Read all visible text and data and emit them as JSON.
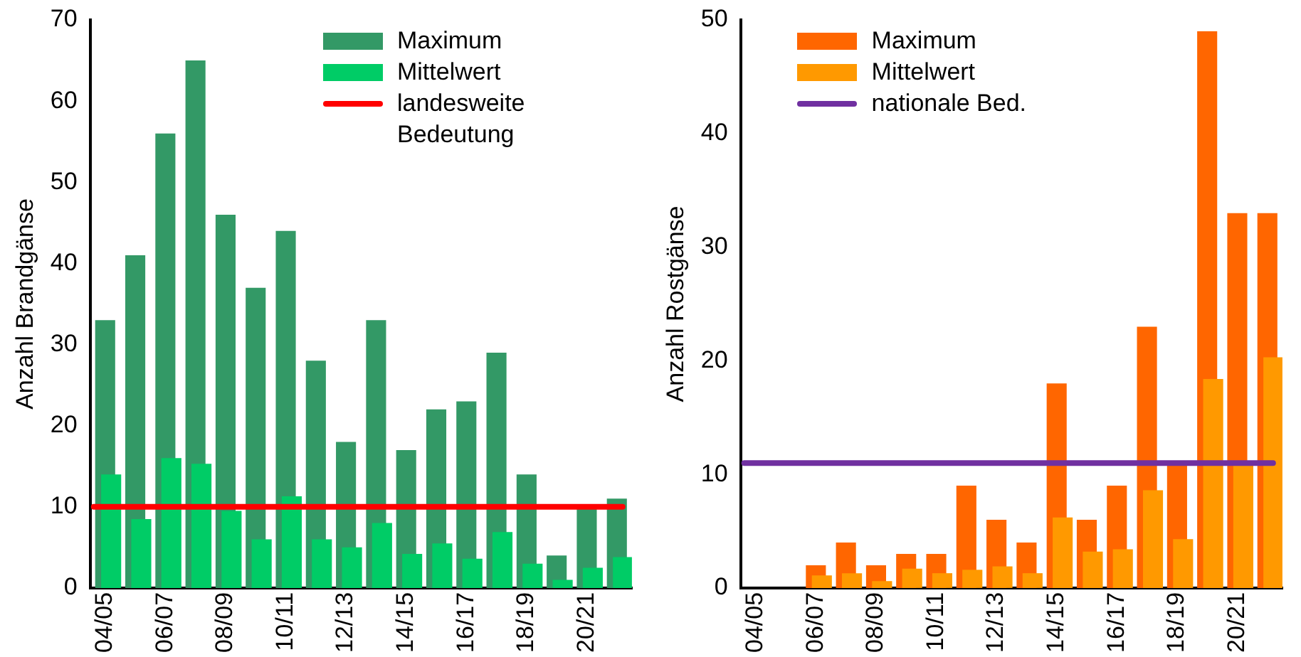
{
  "chart_data": [
    {
      "type": "bar",
      "ylabel": "Anzahl Brandgänse",
      "categories": [
        "04/05",
        null,
        "06/07",
        null,
        "08/09",
        null,
        "10/11",
        null,
        "12/13",
        null,
        "14/15",
        null,
        "16/17",
        null,
        "18/19",
        null,
        "20/21",
        null
      ],
      "series": [
        {
          "name": "Maximum",
          "color": "#339966",
          "values": [
            33,
            41,
            56,
            65,
            46,
            37,
            44,
            28,
            18,
            33,
            17,
            22,
            23,
            29,
            14,
            4,
            10,
            11
          ]
        },
        {
          "name": "Mittelwert",
          "color": "#00cc66",
          "values": [
            14,
            8.5,
            16,
            15.3,
            9.5,
            6,
            11.3,
            6,
            5,
            8,
            4.2,
            5.5,
            3.6,
            6.9,
            3,
            1,
            2.5,
            3.8
          ]
        }
      ],
      "ref_lines": [
        {
          "axis": "y",
          "value": 10,
          "label": "landesweite Bedeutung",
          "color": "#ff0000"
        }
      ],
      "ylim": [
        0,
        70
      ],
      "yticks": [
        0,
        10,
        20,
        30,
        40,
        50,
        60,
        70
      ],
      "grid": false,
      "legend": "top right"
    },
    {
      "type": "bar",
      "ylabel": "Anzahl Rostgänse",
      "categories": [
        "04/05",
        null,
        "06/07",
        null,
        "08/09",
        null,
        "10/11",
        null,
        "12/13",
        null,
        "14/15",
        null,
        "16/17",
        null,
        "18/19",
        null,
        "20/21",
        null
      ],
      "series": [
        {
          "name": "Maximum",
          "color": "#ff6600",
          "values": [
            null,
            null,
            2,
            4,
            2,
            3,
            3,
            9,
            6,
            4,
            18,
            6,
            9,
            23,
            11,
            49,
            33,
            33
          ]
        },
        {
          "name": "Mittelwert",
          "color": "#ff9900",
          "values": [
            null,
            null,
            1.1,
            1.3,
            0.6,
            1.7,
            1.3,
            1.6,
            1.9,
            1.3,
            6.2,
            3.2,
            3.4,
            8.6,
            4.3,
            18.4,
            10.8,
            20.3
          ]
        }
      ],
      "ref_lines": [
        {
          "axis": "y",
          "value": 11,
          "label": "nationale Bed.",
          "color": "#7030a0"
        }
      ],
      "ylim": [
        0,
        50
      ],
      "yticks": [
        0,
        10,
        20,
        30,
        40,
        50
      ],
      "grid": false,
      "legend": "top left"
    }
  ]
}
